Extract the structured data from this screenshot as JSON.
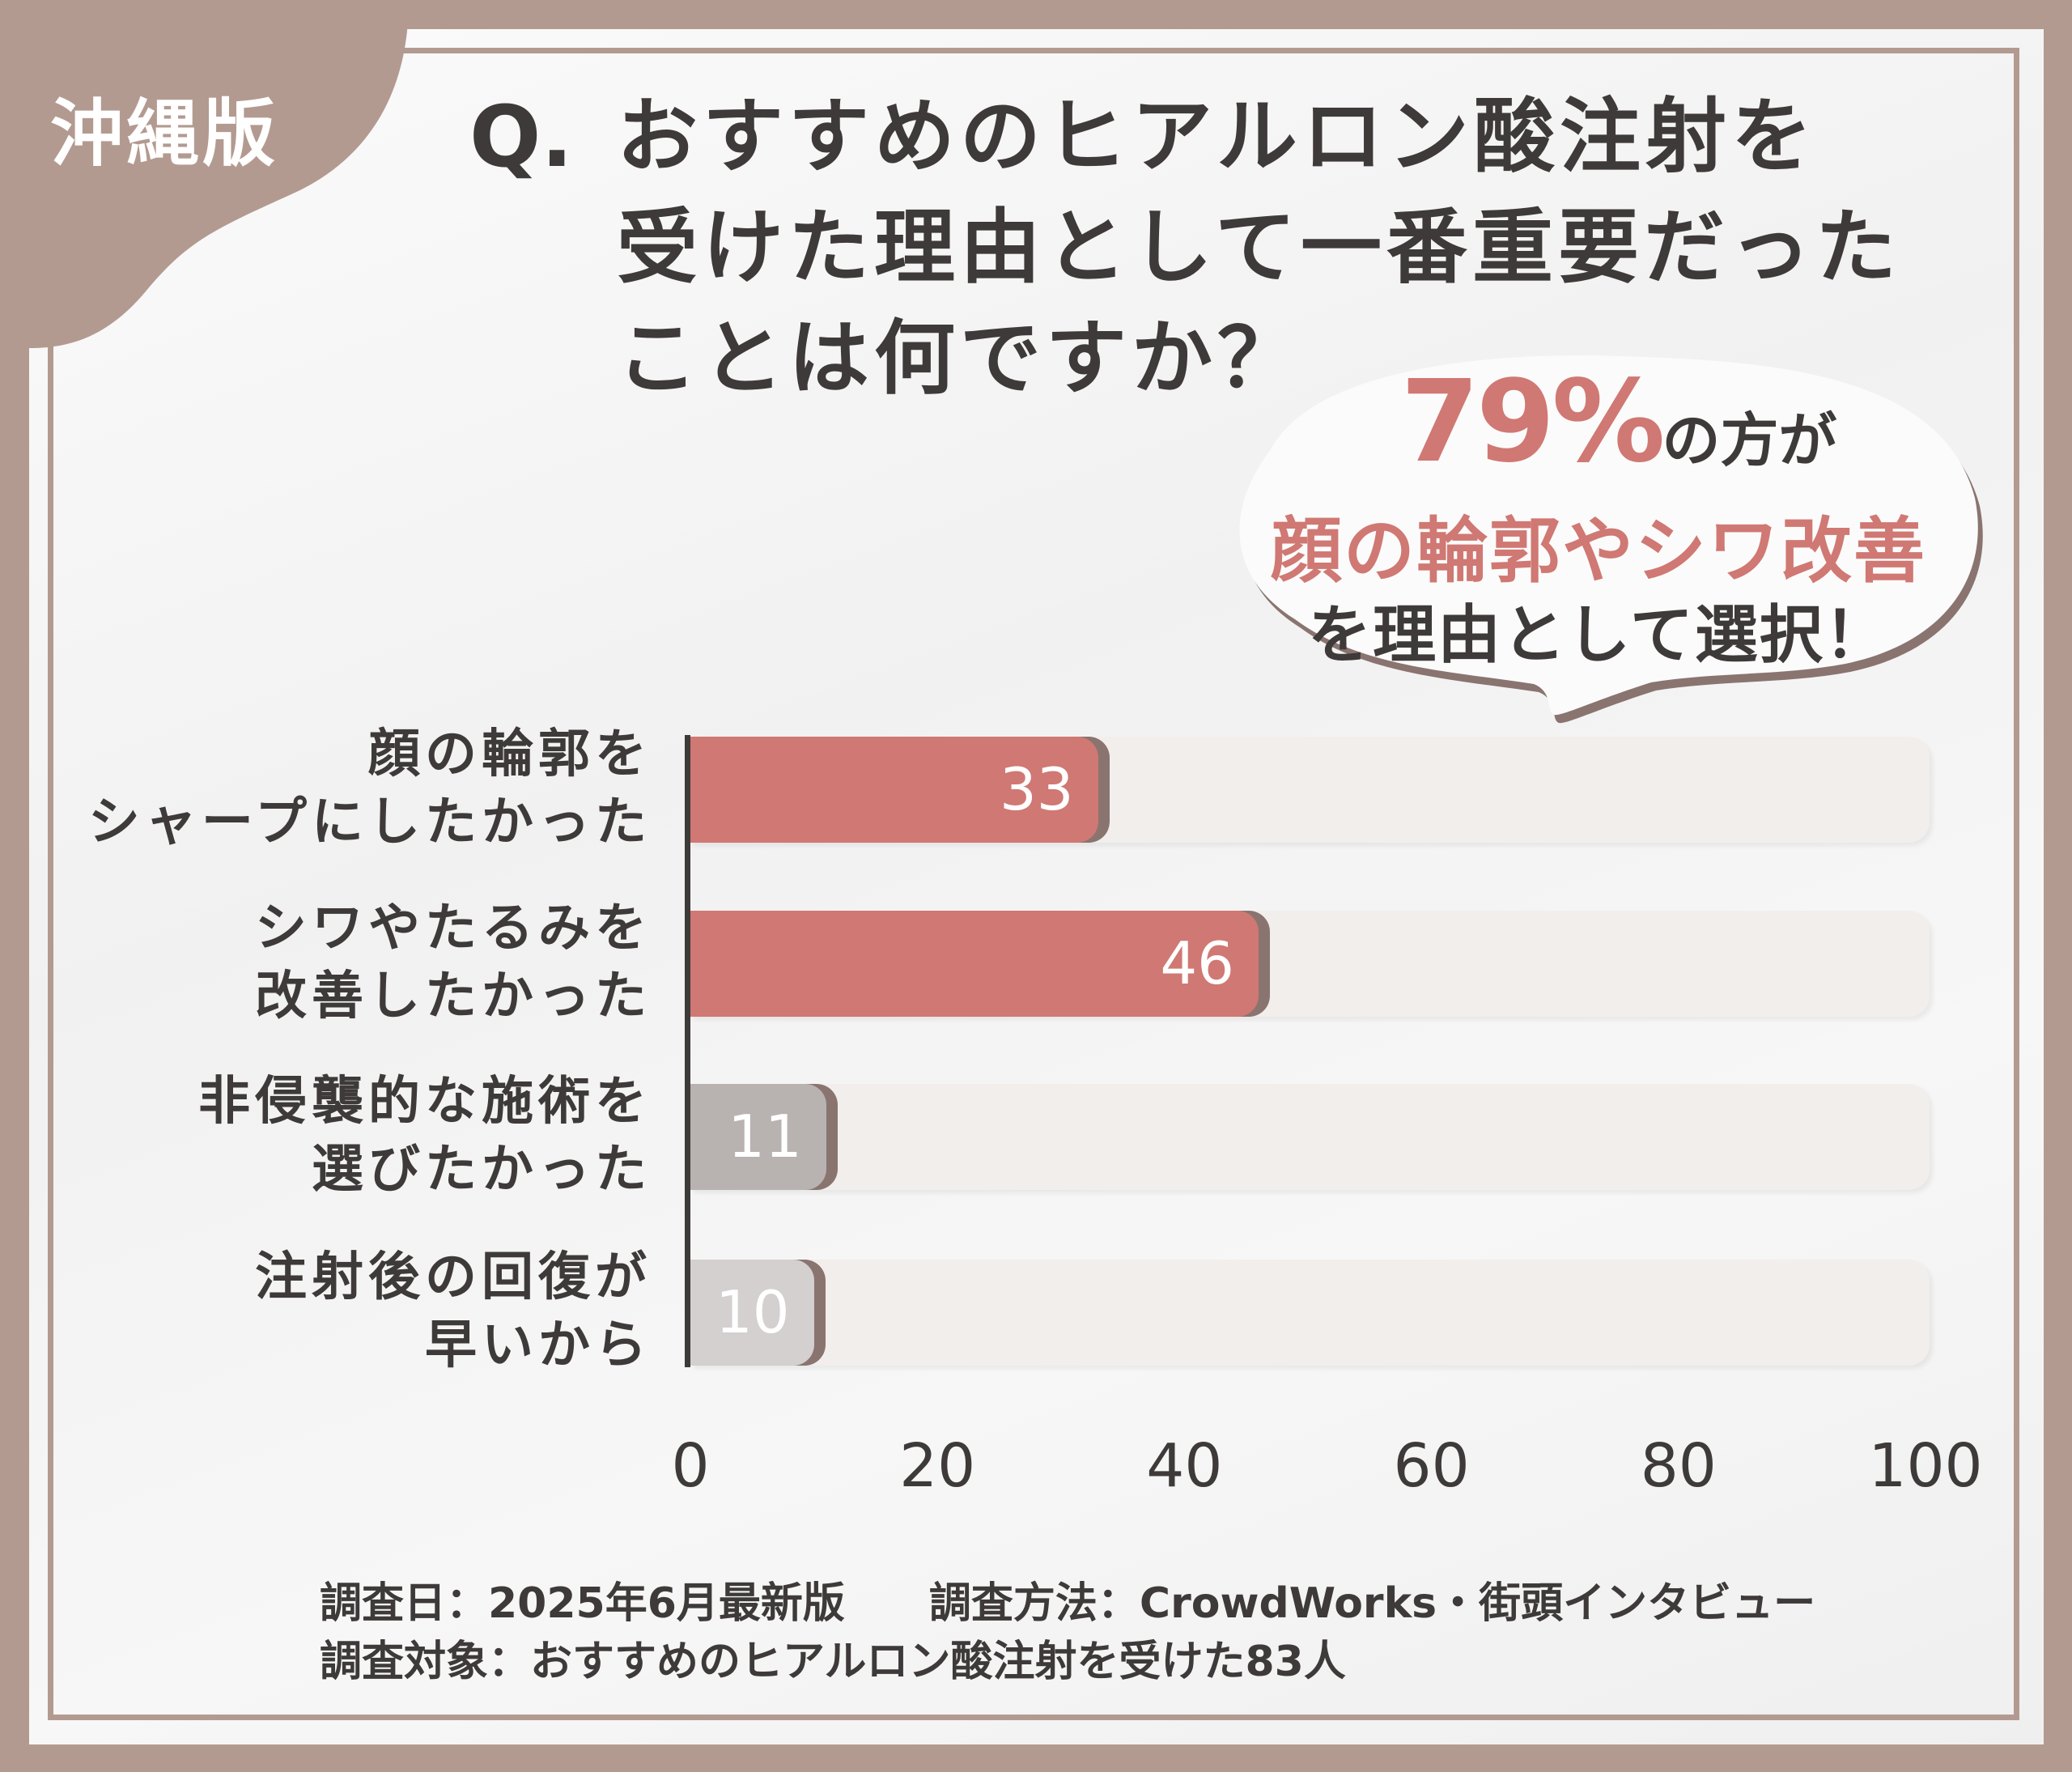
{
  "tag": "沖縄版",
  "question_prefix": "Q.",
  "title": "おすすめのヒアルロン酸注射を\n受けた理由として一番重要だった\nことは何ですか？",
  "callout": {
    "percent": "79%",
    "line1_suffix": "の方が",
    "line2": "顔の輪郭やシワ改善",
    "line3": "を理由として選択！"
  },
  "colors": {
    "background": "#b39a90",
    "highlight": "#d07873",
    "gray": "#b8b3b1",
    "light_gray": "#d3d0cf",
    "track": "#f2eeec",
    "text": "#3e3a39"
  },
  "chart_data": {
    "type": "bar",
    "orientation": "horizontal",
    "categories": [
      "顔の輪郭を\nシャープにしたかった",
      "シワやたるみを\n改善したかった",
      "非侵襲的な施術を\n選びたかった",
      "注射後の回復が\n早いから"
    ],
    "values": [
      33,
      46,
      11,
      10
    ],
    "value_labels": [
      "33",
      "46",
      "11",
      "10"
    ],
    "bar_colors": [
      "#d07873",
      "#d07873",
      "#b8b3b1",
      "#d3d0cf"
    ],
    "xlim": [
      0,
      100
    ],
    "xticks": [
      "0",
      "20",
      "40",
      "60",
      "80",
      "100"
    ],
    "grid": false
  },
  "footer": {
    "line1": "調査日：2025年6月最新版　　調査方法：CrowdWorks・街頭インタビュー",
    "line2": "調査対象：おすすめのヒアルロン酸注射を受けた83人"
  }
}
